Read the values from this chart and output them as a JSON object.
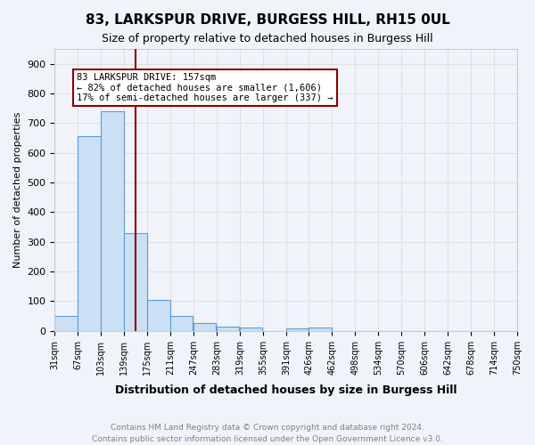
{
  "title": "83, LARKSPUR DRIVE, BURGESS HILL, RH15 0UL",
  "subtitle": "Size of property relative to detached houses in Burgess Hill",
  "xlabel": "Distribution of detached houses by size in Burgess Hill",
  "ylabel": "Number of detached properties",
  "footnote1": "Contains HM Land Registry data © Crown copyright and database right 2024.",
  "footnote2": "Contains public sector information licensed under the Open Government Licence v3.0.",
  "bin_labels": [
    "31sqm",
    "67sqm",
    "103sqm",
    "139sqm",
    "175sqm",
    "211sqm",
    "247sqm",
    "283sqm",
    "319sqm",
    "355sqm",
    "391sqm",
    "426sqm",
    "462sqm",
    "498sqm",
    "534sqm",
    "570sqm",
    "606sqm",
    "642sqm",
    "678sqm",
    "714sqm",
    "750sqm"
  ],
  "bin_edges": [
    31,
    67,
    103,
    139,
    175,
    211,
    247,
    283,
    319,
    355,
    391,
    426,
    462,
    498,
    534,
    570,
    606,
    642,
    678,
    714,
    750
  ],
  "bar_values": [
    50,
    655,
    740,
    330,
    105,
    50,
    27,
    15,
    10,
    0,
    8,
    10,
    0,
    0,
    0,
    0,
    0,
    0,
    0,
    0
  ],
  "bar_color": "#cce0f5",
  "bar_edge_color": "#5b9bd5",
  "property_value": 157,
  "vline_color": "#8b0000",
  "annotation_text": "83 LARKSPUR DRIVE: 157sqm\n← 82% of detached houses are smaller (1,606)\n17% of semi-detached houses are larger (337) →",
  "annotation_box_color": "#ffffff",
  "annotation_box_edge_color": "#8b0000",
  "ylim": [
    0,
    950
  ],
  "yticks": [
    0,
    100,
    200,
    300,
    400,
    500,
    600,
    700,
    800,
    900
  ],
  "grid_color": "#e0e0e0",
  "background_color": "#f0f4fa"
}
